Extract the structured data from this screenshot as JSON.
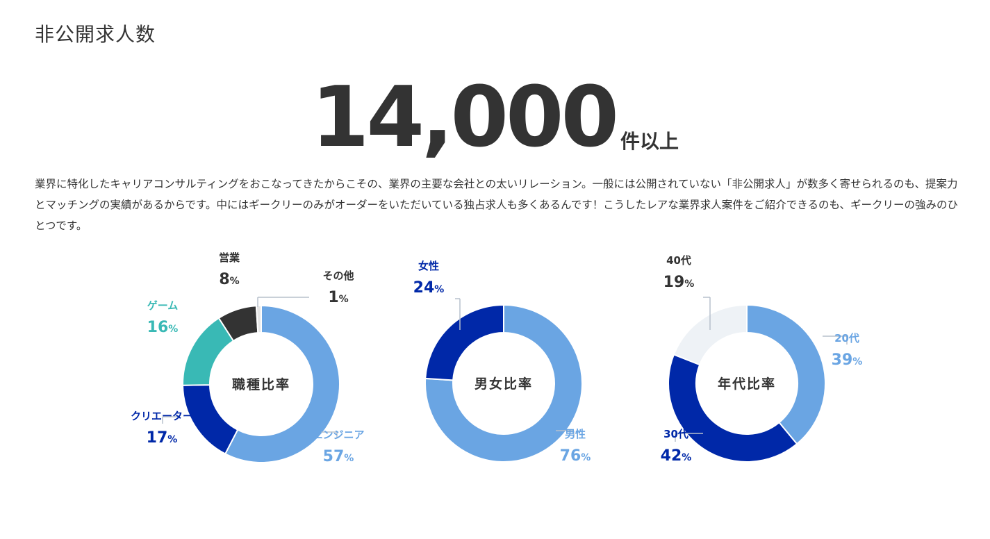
{
  "header": {
    "title": "非公開求人数"
  },
  "headline": {
    "value": "14,000",
    "suffix": "件以上"
  },
  "description": "業界に特化したキャリアコンサルティングをおこなってきたからこその、業界の主要な会社との太いリレーション。一般には公開されていない「非公開求人」が数多く寄せられるのも、提案力とマッチングの実績があるからです。中にはギークリーのみがオーダーをいただいている独占求人も多くあるんです！こうしたレアな業界求人案件をご紹介できるのも、ギークリーの強みのひとつです。",
  "chart_data": [
    {
      "type": "pie",
      "center_label": "職種比率",
      "unit": "%",
      "slices": [
        {
          "label": "エンジニア",
          "value": 57,
          "color": "#6aa5e3",
          "label_color": "#6aa5e3"
        },
        {
          "label": "クリエーター",
          "value": 17,
          "color": "#0028a8",
          "label_color": "#0028a8"
        },
        {
          "label": "ゲーム",
          "value": 16,
          "color": "#39b9b5",
          "label_color": "#39b9b5"
        },
        {
          "label": "営業",
          "value": 8,
          "color": "#333333",
          "label_color": "#333333"
        },
        {
          "label": "その他",
          "value": 1,
          "color": "#e5e5e5",
          "label_color": "#333333"
        }
      ]
    },
    {
      "type": "pie",
      "center_label": "男女比率",
      "unit": "%",
      "slices": [
        {
          "label": "男性",
          "value": 76,
          "color": "#6aa5e3",
          "label_color": "#6aa5e3"
        },
        {
          "label": "女性",
          "value": 24,
          "color": "#0028a8",
          "label_color": "#0028a8"
        }
      ]
    },
    {
      "type": "pie",
      "center_label": "年代比率",
      "unit": "%",
      "slices": [
        {
          "label": "20代",
          "value": 39,
          "color": "#6aa5e3",
          "label_color": "#6aa5e3"
        },
        {
          "label": "30代",
          "value": 42,
          "color": "#0028a8",
          "label_color": "#0028a8"
        },
        {
          "label": "40代",
          "value": 19,
          "color": "#eef2f6",
          "label_color": "#333333"
        }
      ]
    }
  ]
}
